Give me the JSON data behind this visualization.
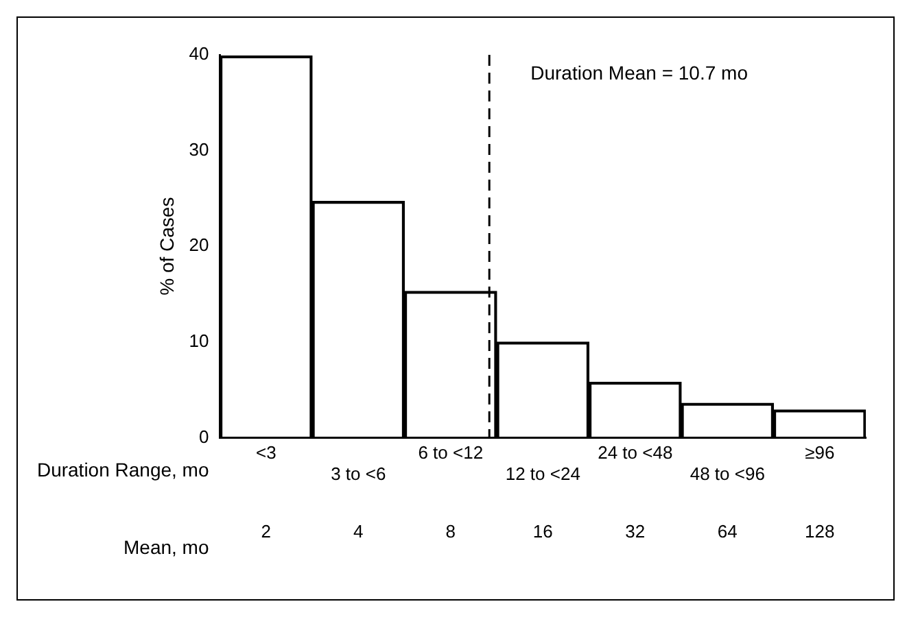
{
  "chart_data": {
    "type": "bar",
    "xlabel": "Duration Range, mo",
    "ylabel": "% of Cases",
    "x2label": "Mean, mo",
    "categories": [
      "<3",
      "3 to <6",
      "6 to <12",
      "12 to <24",
      "24 to <48",
      "48 to <96",
      "≥96"
    ],
    "values": [
      39.9,
      24.7,
      15.3,
      10,
      5.8,
      3.6,
      2.9
    ],
    "color": "#000000",
    "ylim": [
      0,
      40
    ],
    "yticks": [
      0,
      10,
      20,
      30,
      40
    ],
    "x2lim": [
      1.414,
      181
    ],
    "x2ticks": [
      2,
      4,
      8,
      16,
      32,
      64,
      128
    ],
    "log": "x2",
    "ref_lines": [
      {
        "axis": "x2",
        "value": 10.7,
        "label": "Duration Mean = 10.7 mo",
        "line_style": "dashed",
        "color": "#000000"
      }
    ],
    "grid": false,
    "legend": false
  }
}
